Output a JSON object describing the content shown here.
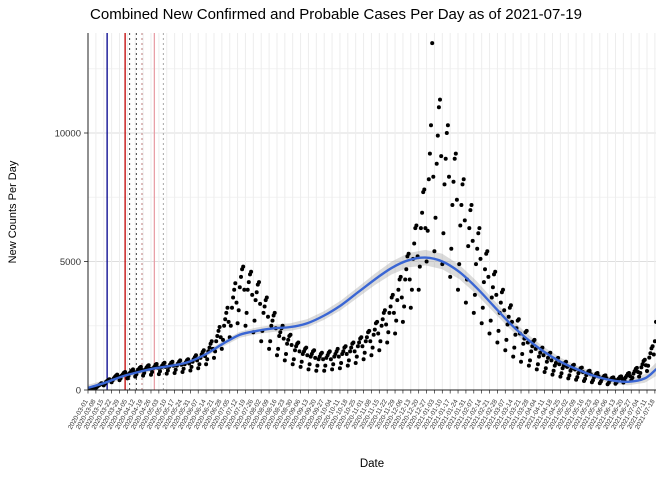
{
  "chart_data": {
    "type": "scatter",
    "title": "Combined New Confirmed and Probable Cases Per Day as of 2021-07-19",
    "xlabel": "Date",
    "ylabel": "New Counts Per Day",
    "y_ticks": [
      0,
      5000,
      10000
    ],
    "y_minor_gridlines": [
      2500,
      7500,
      12500
    ],
    "ylim": [
      0,
      13900
    ],
    "x_start_date": "2020-03-01",
    "x_end_day": 505,
    "x_tick_interval_days": 7,
    "x_tick_labels": [
      "2020-03-01",
      "2020-03-08",
      "2020-03-15",
      "2020-03-22",
      "2020-03-29",
      "2020-04-05",
      "2020-04-12",
      "2020-04-19",
      "2020-04-26",
      "2020-05-03",
      "2020-05-10",
      "2020-05-17",
      "2020-05-24",
      "2020-05-31",
      "2020-06-07",
      "2020-06-14",
      "2020-06-21",
      "2020-06-28",
      "2020-07-05",
      "2020-07-12",
      "2020-07-19",
      "2020-07-26",
      "2020-08-02",
      "2020-08-09",
      "2020-08-16",
      "2020-08-23",
      "2020-08-30",
      "2020-09-06",
      "2020-09-13",
      "2020-09-20",
      "2020-09-27",
      "2020-10-04",
      "2020-10-11",
      "2020-10-18",
      "2020-10-25",
      "2020-11-01",
      "2020-11-08",
      "2020-11-15",
      "2020-11-22",
      "2020-11-29",
      "2020-12-06",
      "2020-12-13",
      "2020-12-20",
      "2020-12-27",
      "2021-01-03",
      "2021-01-10",
      "2021-01-17",
      "2021-01-24",
      "2021-01-31",
      "2021-02-07",
      "2021-02-14",
      "2021-02-21",
      "2021-02-28",
      "2021-03-07",
      "2021-03-14",
      "2021-03-21",
      "2021-03-28",
      "2021-04-04",
      "2021-04-11",
      "2021-04-18",
      "2021-04-25",
      "2021-05-02",
      "2021-05-09",
      "2021-05-16",
      "2021-05-23",
      "2021-05-30",
      "2021-06-06",
      "2021-06-13",
      "2021-06-20",
      "2021-06-27",
      "2021-07-04",
      "2021-07-11",
      "2021-07-18"
    ],
    "points_start_day": 0,
    "points_daily_values": [
      20,
      35,
      60,
      75,
      90,
      110,
      95,
      80,
      120,
      160,
      190,
      220,
      260,
      230,
      180,
      240,
      310,
      350,
      390,
      420,
      380,
      300,
      380,
      460,
      510,
      560,
      600,
      520,
      380,
      450,
      560,
      610,
      670,
      700,
      620,
      450,
      540,
      650,
      700,
      760,
      800,
      690,
      520,
      610,
      740,
      800,
      860,
      900,
      780,
      560,
      660,
      800,
      870,
      930,
      960,
      830,
      590,
      700,
      850,
      900,
      980,
      1010,
      870,
      620,
      730,
      880,
      950,
      1020,
      1060,
      900,
      640,
      760,
      900,
      990,
      1060,
      1100,
      940,
      660,
      790,
      950,
      1030,
      1100,
      1150,
      980,
      700,
      830,
      1000,
      1080,
      1160,
      1200,
      1030,
      760,
      900,
      1100,
      1200,
      1280,
      1350,
      1150,
      850,
      1000,
      1250,
      1380,
      1480,
      1550,
      1320,
      1000,
      1200,
      1500,
      1650,
      1800,
      1900,
      1600,
      1250,
      1500,
      1900,
      2100,
      2300,
      2450,
      2050,
      1600,
      1950,
      2500,
      2750,
      3000,
      3200,
      2650,
      2050,
      2500,
      3200,
      3600,
      3900,
      4150,
      3400,
      2600,
      3100,
      4000,
      4400,
      4700,
      4800,
      3900,
      2500,
      3000,
      3900,
      4200,
      4500,
      4600,
      3700,
      2250,
      2700,
      3500,
      3800,
      4100,
      4200,
      3350,
      1900,
      2300,
      3000,
      3250,
      3500,
      3600,
      2850,
      1600,
      1900,
      2500,
      2700,
      2900,
      3000,
      2400,
      1350,
      1600,
      2100,
      2250,
      2400,
      2500,
      2000,
      1150,
      1400,
      1800,
      1950,
      2100,
      2150,
      1750,
      1000,
      1200,
      1550,
      1700,
      1800,
      1850,
      1500,
      900,
      1100,
      1400,
      1500,
      1600,
      1650,
      1350,
      800,
      1000,
      1300,
      1400,
      1500,
      1550,
      1250,
      750,
      950,
      1200,
      1300,
      1400,
      1450,
      1200,
      750,
      950,
      1250,
      1350,
      1450,
      1500,
      1200,
      800,
      1000,
      1300,
      1400,
      1500,
      1600,
      1300,
      850,
      1050,
      1400,
      1500,
      1650,
      1700,
      1400,
      950,
      1150,
      1500,
      1650,
      1800,
      1850,
      1500,
      1050,
      1300,
      1700,
      1850,
      2000,
      2050,
      1700,
      1200,
      1450,
      1900,
      2050,
      2250,
      2300,
      1900,
      1350,
      1650,
      2150,
      2350,
      2600,
      2650,
      2200,
      1550,
      1900,
      2500,
      2750,
      3000,
      3100,
      2550,
      1850,
      2250,
      3000,
      3250,
      3600,
      3700,
      3000,
      2200,
      2700,
      3500,
      3900,
      4300,
      4400,
      3600,
      2650,
      3250,
      4300,
      4700,
      5200,
      5300,
      4300,
      3200,
      3900,
      5100,
      5700,
      6300,
      6400,
      5200,
      3900,
      4800,
      6300,
      6900,
      7700,
      7800,
      6300,
      5000,
      6200,
      8200,
      9200,
      10300,
      13500,
      8300,
      5400,
      6700,
      8800,
      9900,
      11000,
      11300,
      9100,
      4900,
      6100,
      8000,
      9000,
      10000,
      10300,
      8300,
      4400,
      5500,
      7200,
      8100,
      9000,
      9200,
      7400,
      3900,
      4900,
      6400,
      7200,
      8000,
      8200,
      6600,
      3400,
      4300,
      5600,
      6300,
      7000,
      7200,
      5800,
      3000,
      3700,
      4900,
      5500,
      6100,
      6300,
      5100,
      2600,
      3200,
      4200,
      4700,
      5300,
      5400,
      4400,
      2200,
      2700,
      3600,
      4000,
      4500,
      4600,
      3700,
      1850,
      2300,
      3000,
      3400,
      3800,
      3900,
      3100,
      1550,
      1950,
      2550,
      2850,
      3200,
      3300,
      2650,
      1300,
      1650,
      2150,
      2400,
      2700,
      2750,
      2200,
      1100,
      1400,
      1800,
      2000,
      2250,
      2300,
      1850,
      950,
      1150,
      1500,
      1700,
      1900,
      1950,
      1600,
      800,
      1000,
      1300,
      1450,
      1600,
      1650,
      1350,
      700,
      850,
      1100,
      1250,
      1400,
      1450,
      1150,
      600,
      750,
      950,
      1050,
      1200,
      1250,
      1000,
      520,
      650,
      850,
      950,
      1050,
      1100,
      900,
      450,
      570,
      750,
      850,
      950,
      980,
      800,
      400,
      500,
      650,
      750,
      850,
      870,
      700,
      350,
      440,
      580,
      650,
      730,
      750,
      610,
      300,
      380,
      500,
      570,
      640,
      660,
      530,
      260,
      330,
      430,
      490,
      550,
      570,
      460,
      220,
      280,
      370,
      420,
      470,
      490,
      400,
      240,
      300,
      400,
      450,
      510,
      530,
      430,
      290,
      370,
      490,
      560,
      630,
      660,
      540,
      380,
      480,
      640,
      730,
      820,
      860,
      700,
      520,
      660,
      880,
      1000,
      1130,
      1180,
      960,
      740,
      940,
      1260,
      1430,
      1620,
      1700,
      1380,
      1900,
      2650
    ],
    "smooth": {
      "days": [
        0,
        15,
        30,
        45,
        60,
        75,
        90,
        105,
        120,
        135,
        150,
        165,
        180,
        195,
        210,
        225,
        240,
        255,
        270,
        285,
        300,
        315,
        330,
        345,
        360,
        375,
        390,
        405,
        420,
        435,
        450,
        465,
        480,
        495,
        505
      ],
      "values": [
        80,
        280,
        520,
        700,
        850,
        950,
        1100,
        1400,
        1800,
        2150,
        2300,
        2400,
        2450,
        2600,
        2900,
        3300,
        3800,
        4300,
        4750,
        5050,
        5150,
        5000,
        4600,
        4000,
        3300,
        2600,
        2000,
        1500,
        1100,
        800,
        550,
        380,
        320,
        450,
        800
      ],
      "ribbon": [
        120,
        110,
        100,
        95,
        90,
        90,
        95,
        100,
        110,
        120,
        130,
        140,
        150,
        160,
        170,
        185,
        200,
        220,
        250,
        280,
        300,
        300,
        280,
        260,
        240,
        220,
        200,
        180,
        160,
        140,
        130,
        130,
        140,
        170,
        260
      ]
    },
    "reference_lines": [
      {
        "day": 17,
        "color": "#00008B",
        "style": "solid",
        "width": 1.3
      },
      {
        "day": 33,
        "color": "#C00000",
        "style": "solid",
        "width": 1.3
      },
      {
        "day": 37,
        "color": "#404040",
        "style": "dotted",
        "width": 1
      },
      {
        "day": 43,
        "color": "#404040",
        "style": "dotted",
        "width": 1
      },
      {
        "day": 48,
        "color": "#C08080",
        "style": "dotted",
        "width": 1
      },
      {
        "day": 59,
        "color": "#E8A0A8",
        "style": "solid",
        "width": 1.3
      },
      {
        "day": 67,
        "color": "#A8A8A8",
        "style": "dotted",
        "width": 1
      }
    ],
    "colors": {
      "point": "#000000",
      "smooth_line": "#3A66D4",
      "ribbon": "#999999",
      "grid_major": "#dedede",
      "grid_minor": "#f2f2f2",
      "grid_vertical": "#ededed",
      "axis": "#222222",
      "tick_label": "#333333"
    }
  }
}
